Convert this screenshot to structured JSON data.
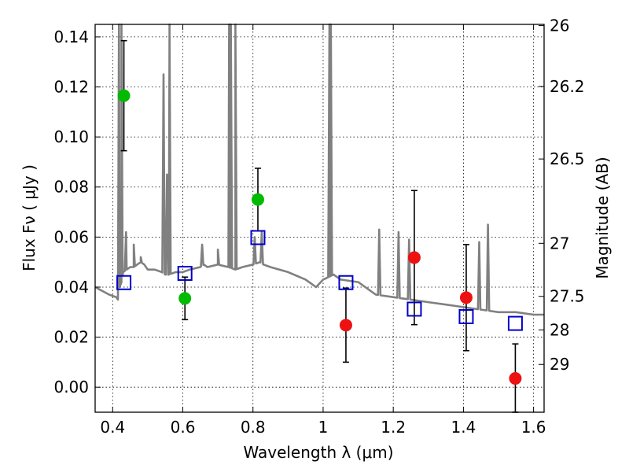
{
  "chart_data": {
    "type": "scatter",
    "title": "",
    "xlabel": "Wavelength  λ (μm)",
    "ylabel": "Flux  Fν  ( μJy )",
    "y2label": "Magnitude (AB)",
    "xlim": [
      0.35,
      1.63
    ],
    "ylim": [
      -0.01,
      0.145
    ],
    "grid": true,
    "x_ticks": [
      0.4,
      0.6,
      0.8,
      1.0,
      1.2,
      1.4,
      1.6
    ],
    "x_tick_labels": [
      "0.4",
      "0.6",
      "0.8",
      "1",
      "1.2",
      "1.4",
      "1.6"
    ],
    "y_ticks": [
      0.0,
      0.02,
      0.04,
      0.06,
      0.08,
      0.1,
      0.12,
      0.14
    ],
    "y_tick_labels": [
      "0.00",
      "0.02",
      "0.04",
      "0.06",
      "0.08",
      "0.10",
      "0.12",
      "0.14"
    ],
    "y2_ticks": [
      {
        "label": "26",
        "flux": 0.1445
      },
      {
        "label": "26.2",
        "flux": 0.1202
      },
      {
        "label": "26.5",
        "flux": 0.0912
      },
      {
        "label": "27",
        "flux": 0.0575
      },
      {
        "label": "27.5",
        "flux": 0.0363
      },
      {
        "label": "28",
        "flux": 0.0229
      },
      {
        "label": "29",
        "flux": 0.0091
      }
    ],
    "series": [
      {
        "marker": "circle-filled",
        "color": "#00bb00",
        "points": [
          {
            "x": 0.432,
            "y": 0.1165,
            "yerr": 0.022
          },
          {
            "x": 0.606,
            "y": 0.0355,
            "yerr": 0.0085
          },
          {
            "x": 0.814,
            "y": 0.075,
            "yerr": 0.0125
          }
        ]
      },
      {
        "marker": "circle-filled",
        "color": "#ee1111",
        "points": [
          {
            "x": 1.065,
            "y": 0.0248,
            "yerr": 0.0148
          },
          {
            "x": 1.26,
            "y": 0.0518,
            "yerr": 0.0268
          },
          {
            "x": 1.408,
            "y": 0.0358,
            "yerr": 0.0212
          },
          {
            "x": 1.548,
            "y": 0.0035,
            "yerr": 0.0138
          }
        ]
      },
      {
        "marker": "square-open",
        "color": "#0000cc",
        "points": [
          {
            "x": 0.432,
            "y": 0.0418
          },
          {
            "x": 0.606,
            "y": 0.0455
          },
          {
            "x": 0.814,
            "y": 0.0598
          },
          {
            "x": 1.065,
            "y": 0.0418
          },
          {
            "x": 1.26,
            "y": 0.0312
          },
          {
            "x": 1.408,
            "y": 0.0282
          },
          {
            "x": 1.548,
            "y": 0.0255
          }
        ]
      },
      {
        "marker": "line",
        "color": "#808080",
        "x": [
          0.35,
          0.39,
          0.41,
          0.415,
          0.42,
          0.425,
          0.43,
          0.44,
          0.45,
          0.46,
          0.47,
          0.48,
          0.49,
          0.5,
          0.52,
          0.54,
          0.55,
          0.56,
          0.58,
          0.6,
          0.62,
          0.65,
          0.66,
          0.67,
          0.7,
          0.73,
          0.75,
          0.77,
          0.8,
          0.82,
          0.83,
          0.85,
          0.9,
          0.95,
          0.97,
          0.98,
          1.0,
          1.03,
          1.05,
          1.1,
          1.15,
          1.2,
          1.25,
          1.3,
          1.35,
          1.4,
          1.45,
          1.5,
          1.55,
          1.6,
          1.63
        ],
        "y": [
          0.04,
          0.037,
          0.036,
          0.035,
          0.04,
          0.042,
          0.046,
          0.047,
          0.048,
          0.048,
          0.049,
          0.05,
          0.049,
          0.047,
          0.047,
          0.046,
          0.045,
          0.045,
          0.046,
          0.046,
          0.047,
          0.048,
          0.049,
          0.048,
          0.049,
          0.048,
          0.047,
          0.048,
          0.049,
          0.05,
          0.049,
          0.048,
          0.046,
          0.043,
          0.041,
          0.04,
          0.043,
          0.045,
          0.043,
          0.042,
          0.037,
          0.036,
          0.035,
          0.034,
          0.033,
          0.032,
          0.031,
          0.03,
          0.03,
          0.029,
          0.029
        ],
        "emission_lines": [
          {
            "x": 0.418,
            "peak": 0.145
          },
          {
            "x": 0.425,
            "peak": 0.145
          },
          {
            "x": 0.438,
            "peak": 0.062
          },
          {
            "x": 0.46,
            "peak": 0.057
          },
          {
            "x": 0.48,
            "peak": 0.052
          },
          {
            "x": 0.545,
            "peak": 0.125
          },
          {
            "x": 0.555,
            "peak": 0.085
          },
          {
            "x": 0.562,
            "peak": 0.145
          },
          {
            "x": 0.655,
            "peak": 0.057
          },
          {
            "x": 0.7,
            "peak": 0.055
          },
          {
            "x": 0.732,
            "peak": 0.145
          },
          {
            "x": 0.737,
            "peak": 0.145
          },
          {
            "x": 0.75,
            "peak": 0.145
          },
          {
            "x": 0.805,
            "peak": 0.06
          },
          {
            "x": 0.825,
            "peak": 0.062
          },
          {
            "x": 1.018,
            "peak": 0.145
          },
          {
            "x": 1.022,
            "peak": 0.145
          },
          {
            "x": 1.16,
            "peak": 0.063
          },
          {
            "x": 1.215,
            "peak": 0.062
          },
          {
            "x": 1.245,
            "peak": 0.059
          },
          {
            "x": 1.445,
            "peak": 0.058
          },
          {
            "x": 1.47,
            "peak": 0.065
          }
        ]
      }
    ]
  }
}
